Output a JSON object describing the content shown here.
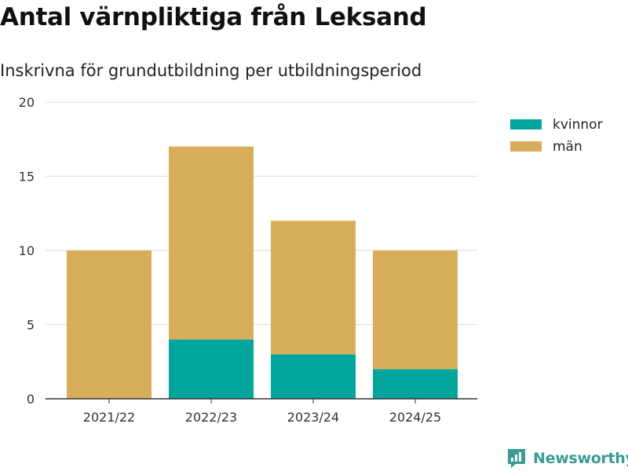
{
  "header": {
    "title": "Antal värnpliktiga från Leksand",
    "subtitle": "Inskrivna för grundutbildning per utbildningsperiod"
  },
  "chart_data": {
    "type": "bar",
    "stacked": true,
    "categories": [
      "2021/22",
      "2022/23",
      "2023/24",
      "2024/25"
    ],
    "series": [
      {
        "name": "kvinnor",
        "values": [
          0,
          4,
          3,
          2
        ],
        "color": "#00a59b"
      },
      {
        "name": "män",
        "values": [
          10,
          13,
          9,
          8
        ],
        "color": "#d9ae5b"
      }
    ],
    "ylim": [
      0,
      20
    ],
    "yticks": [
      0,
      5,
      10,
      15,
      20
    ],
    "grid": true,
    "legend": "top-right",
    "xlabel": "",
    "ylabel": ""
  },
  "brand": {
    "name": "Newsworthy",
    "icon": "newsworthy-logo-icon",
    "color": "#3a9a94"
  }
}
